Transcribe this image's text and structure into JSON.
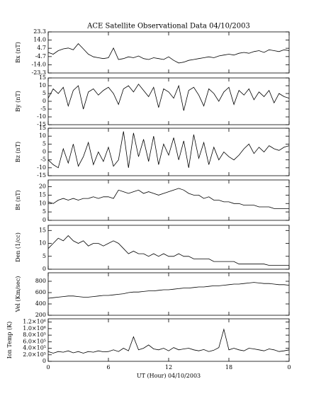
{
  "chart_data": [
    {
      "type": "line",
      "title": "ACE Satellite Observational Data   04/10/2003",
      "ylabel": "Bx (nT)",
      "color": "#000000",
      "x": [
        0,
        0.5,
        1,
        1.5,
        2,
        2.5,
        3,
        3.5,
        4,
        4.5,
        5,
        5.5,
        6,
        6.5,
        7,
        7.5,
        8,
        8.5,
        9,
        9.5,
        10,
        10.5,
        11,
        11.5,
        12,
        12.5,
        13,
        13.5,
        14,
        14.5,
        15,
        15.5,
        16,
        16.5,
        17,
        17.5,
        18,
        18.5,
        19,
        19.5,
        20,
        20.5,
        21,
        21.5,
        22,
        22.5,
        23,
        23.5,
        24
      ],
      "values": [
        0,
        -2,
        2,
        4,
        5,
        3,
        10,
        4,
        -2,
        -5,
        -6,
        -7,
        -6,
        5,
        -8,
        -7,
        -5,
        -6,
        -4,
        -7,
        -8,
        -6,
        -7,
        -8,
        -5,
        -9,
        -12,
        -11,
        -9,
        -8,
        -7,
        -6,
        -5,
        -6,
        -4,
        -3,
        -2,
        -3,
        -1,
        0,
        -1,
        1,
        2,
        0,
        3,
        2,
        1,
        3,
        2
      ],
      "xlim": [
        0,
        24
      ],
      "xticks": [
        0,
        6,
        12,
        18,
        24
      ],
      "ylim": [
        -23.3,
        23.3
      ],
      "yticks": [
        -23.3,
        {
          "value": -14,
          "label": "-14.0"
        },
        -4.7,
        4.7,
        {
          "value": 14,
          "label": "14.0"
        },
        23.3
      ]
    },
    {
      "type": "line",
      "ylabel": "By (nT)",
      "color": "#000000",
      "x": [
        0,
        0.5,
        1,
        1.5,
        2,
        2.5,
        3,
        3.5,
        4,
        4.5,
        5,
        5.5,
        6,
        6.5,
        7,
        7.5,
        8,
        8.5,
        9,
        9.5,
        10,
        10.5,
        11,
        11.5,
        12,
        12.5,
        13,
        13.5,
        14,
        14.5,
        15,
        15.5,
        16,
        16.5,
        17,
        17.5,
        18,
        18.5,
        19,
        19.5,
        20,
        20.5,
        21,
        21.5,
        22,
        22.5,
        23,
        23.5,
        24
      ],
      "values": [
        2,
        8,
        5,
        9,
        -3,
        7,
        10,
        -5,
        6,
        8,
        4,
        7,
        9,
        5,
        -2,
        8,
        10,
        6,
        11,
        7,
        3,
        9,
        -4,
        8,
        6,
        2,
        10,
        -6,
        7,
        9,
        4,
        -3,
        8,
        5,
        0,
        6,
        9,
        -2,
        7,
        4,
        8,
        1,
        6,
        3,
        7,
        -1,
        5,
        3,
        2
      ],
      "xlim": [
        0,
        24
      ],
      "xticks": [
        0,
        6,
        12,
        18,
        24
      ],
      "ylim": [
        -15,
        15
      ],
      "yticks": [
        -15,
        -10,
        -5,
        0,
        5,
        10,
        15
      ]
    },
    {
      "type": "line",
      "ylabel": "Bz (nT)",
      "color": "#000000",
      "x": [
        0,
        0.5,
        1,
        1.5,
        2,
        2.5,
        3,
        3.5,
        4,
        4.5,
        5,
        5.5,
        6,
        6.5,
        7,
        7.5,
        8,
        8.5,
        9,
        9.5,
        10,
        10.5,
        11,
        11.5,
        12,
        12.5,
        13,
        13.5,
        14,
        14.5,
        15,
        15.5,
        16,
        16.5,
        17,
        17.5,
        18,
        18.5,
        19,
        19.5,
        20,
        20.5,
        21,
        21.5,
        22,
        22.5,
        23,
        23.5,
        24
      ],
      "values": [
        -5,
        -8,
        -10,
        2,
        -7,
        5,
        -9,
        -3,
        6,
        -8,
        0,
        -6,
        3,
        -9,
        -5,
        13,
        -10,
        12,
        -3,
        8,
        -6,
        10,
        -8,
        5,
        -2,
        9,
        -5,
        7,
        -10,
        11,
        -4,
        6,
        -8,
        3,
        -5,
        0,
        -3,
        -5,
        -2,
        2,
        5,
        -1,
        3,
        0,
        4,
        2,
        1,
        3,
        4
      ],
      "xlim": [
        0,
        24
      ],
      "xticks": [
        0,
        6,
        12,
        18,
        24
      ],
      "ylim": [
        -15,
        15
      ],
      "yticks": [
        -15,
        -10,
        -5,
        0,
        5,
        10,
        15
      ]
    },
    {
      "type": "line",
      "ylabel": "Bt (nT)",
      "color": "#000000",
      "x": [
        0,
        0.5,
        1,
        1.5,
        2,
        2.5,
        3,
        3.5,
        4,
        4.5,
        5,
        5.5,
        6,
        6.5,
        7,
        7.5,
        8,
        8.5,
        9,
        9.5,
        10,
        10.5,
        11,
        11.5,
        12,
        12.5,
        13,
        13.5,
        14,
        14.5,
        15,
        15.5,
        16,
        16.5,
        17,
        17.5,
        18,
        18.5,
        19,
        19.5,
        20,
        20.5,
        21,
        21.5,
        22,
        22.5,
        23,
        23.5,
        24
      ],
      "values": [
        11,
        10,
        12,
        13,
        12,
        13,
        12,
        13,
        13,
        14,
        13,
        14,
        14,
        13,
        18,
        17,
        16,
        17,
        18,
        16,
        17,
        16,
        15,
        16,
        17,
        18,
        19,
        18,
        16,
        15,
        15,
        13,
        14,
        12,
        12,
        11,
        11,
        10,
        10,
        9,
        9,
        9,
        8,
        8,
        8,
        7,
        7,
        7,
        7
      ],
      "xlim": [
        0,
        24
      ],
      "xticks": [
        0,
        6,
        12,
        18,
        24
      ],
      "ylim": [
        0,
        24
      ],
      "yticks": [
        0,
        5,
        10,
        15,
        20
      ]
    },
    {
      "type": "line",
      "ylabel": "Den (1/cc)",
      "color": "#000000",
      "x": [
        0,
        0.5,
        1,
        1.5,
        2,
        2.5,
        3,
        3.5,
        4,
        4.5,
        5,
        5.5,
        6,
        6.5,
        7,
        7.5,
        8,
        8.5,
        9,
        9.5,
        10,
        10.5,
        11,
        11.5,
        12,
        12.5,
        13,
        13.5,
        14,
        14.5,
        15,
        15.5,
        16,
        16.5,
        17,
        17.5,
        18,
        18.5,
        19,
        19.5,
        20,
        20.5,
        21,
        21.5,
        22,
        22.5,
        23,
        23.5,
        24
      ],
      "values": [
        8,
        10,
        12,
        11,
        13,
        11,
        10,
        11,
        9,
        10,
        10,
        9,
        10,
        11,
        10,
        8,
        6,
        7,
        6,
        6,
        5,
        6,
        5,
        6,
        5,
        5,
        6,
        5,
        5,
        4,
        4,
        4,
        4,
        3,
        3,
        3,
        3,
        3,
        2,
        2,
        2,
        2,
        2,
        2,
        1.5,
        1.5,
        1.5,
        1.5,
        1.5
      ],
      "xlim": [
        0,
        24
      ],
      "xticks": [
        0,
        6,
        12,
        18,
        24
      ],
      "ylim": [
        0,
        17
      ],
      "yticks": [
        0,
        5,
        10,
        15
      ]
    },
    {
      "type": "line",
      "ylabel": "Vel (Km/sec)",
      "color": "#000000",
      "x": [
        0,
        0.5,
        1,
        1.5,
        2,
        2.5,
        3,
        3.5,
        4,
        4.5,
        5,
        5.5,
        6,
        6.5,
        7,
        7.5,
        8,
        8.5,
        9,
        9.5,
        10,
        10.5,
        11,
        11.5,
        12,
        12.5,
        13,
        13.5,
        14,
        14.5,
        15,
        15.5,
        16,
        16.5,
        17,
        17.5,
        18,
        18.5,
        19,
        19.5,
        20,
        20.5,
        21,
        21.5,
        22,
        22.5,
        23,
        23.5,
        24
      ],
      "values": [
        500,
        510,
        520,
        530,
        540,
        540,
        530,
        520,
        520,
        530,
        540,
        550,
        550,
        560,
        570,
        580,
        600,
        610,
        610,
        620,
        630,
        630,
        640,
        650,
        650,
        660,
        670,
        680,
        680,
        690,
        700,
        700,
        710,
        720,
        720,
        730,
        740,
        750,
        750,
        760,
        770,
        780,
        770,
        760,
        760,
        750,
        740,
        740,
        730
      ],
      "xlim": [
        0,
        24
      ],
      "xticks": [
        0,
        6,
        12,
        18,
        24
      ],
      "ylim": [
        200,
        950
      ],
      "yticks": [
        200,
        400,
        600,
        800
      ]
    },
    {
      "type": "line",
      "ylabel": "Ion Temp (K)",
      "xlabel": "UT (Hour)  04/10/2003",
      "color": "#000000",
      "x": [
        0,
        0.5,
        1,
        1.5,
        2,
        2.5,
        3,
        3.5,
        4,
        4.5,
        5,
        5.5,
        6,
        6.5,
        7,
        7.5,
        8,
        8.5,
        9,
        9.5,
        10,
        10.5,
        11,
        11.5,
        12,
        12.5,
        13,
        13.5,
        14,
        14.5,
        15,
        15.5,
        16,
        16.5,
        17,
        17.5,
        18,
        18.5,
        19,
        19.5,
        20,
        20.5,
        21,
        21.5,
        22,
        22.5,
        23,
        23.5,
        24
      ],
      "values": [
        300000,
        250000,
        300000,
        280000,
        320000,
        260000,
        300000,
        250000,
        300000,
        280000,
        320000,
        290000,
        300000,
        350000,
        300000,
        400000,
        320000,
        750000,
        350000,
        400000,
        500000,
        380000,
        350000,
        400000,
        320000,
        420000,
        350000,
        380000,
        400000,
        350000,
        320000,
        360000,
        300000,
        340000,
        420000,
        980000,
        350000,
        400000,
        350000,
        320000,
        400000,
        380000,
        350000,
        320000,
        380000,
        350000,
        300000,
        320000,
        350000
      ],
      "xlim": [
        0,
        24
      ],
      "xticks": [
        0,
        6,
        12,
        18,
        {
          "value": 24,
          "label": "0"
        }
      ],
      "ylim": [
        0,
        1300000
      ],
      "yticks": [
        0,
        {
          "value": 200000,
          "label": "2.0×10⁵"
        },
        {
          "value": 400000,
          "label": "4.0×10⁵"
        },
        {
          "value": 600000,
          "label": "6.0×10⁵"
        },
        {
          "value": 800000,
          "label": "8.0×10⁵"
        },
        {
          "value": 1000000,
          "label": "1.0×10⁶"
        },
        {
          "value": 1200000,
          "label": "1.2×10⁶"
        }
      ]
    }
  ]
}
